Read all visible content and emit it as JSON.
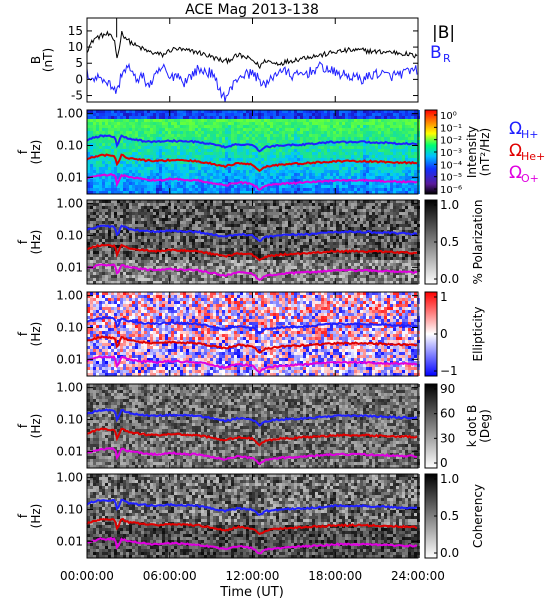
{
  "chart_data": {
    "type": "multi-panel",
    "title": "ACE Mag 2013-138",
    "xlabel": "Time (UT)",
    "x_ticks": [
      "00:00:00",
      "06:00:00",
      "12:00:00",
      "18:00:00",
      "24:00:00"
    ],
    "x_range_hours": [
      0,
      24
    ],
    "panels": [
      {
        "type": "line",
        "ylabel": "B\n(nT)",
        "ylim": [
          -7,
          19
        ],
        "y_ticks": [
          15,
          10,
          5,
          0,
          -5
        ],
        "legend": [
          {
            "label": "|B|",
            "color": "#000000"
          },
          {
            "label": "B",
            "sub": "R",
            "color": "#2020ff"
          }
        ],
        "series": [
          {
            "color": "#000000",
            "x": [
              0,
              0.5,
              1,
              1.5,
              2,
              2.2,
              2.5,
              3,
              3.5,
              4,
              4.5,
              5,
              5.5,
              6,
              6.5,
              7,
              8,
              9,
              10,
              11,
              12,
              12.5,
              13,
              13.5,
              14,
              15,
              16,
              17,
              18,
              19,
              20,
              21,
              22,
              23,
              24
            ],
            "values": [
              9,
              12.5,
              13.5,
              14,
              12,
              6,
              14.5,
              12,
              10.5,
              9.5,
              8.5,
              8,
              7.5,
              9,
              9.5,
              9,
              8.5,
              7,
              5.5,
              7.5,
              6,
              4,
              6,
              5,
              5,
              6,
              7,
              7.5,
              8.5,
              9,
              9,
              8.5,
              8.5,
              8,
              7
            ]
          },
          {
            "color": "#2020ff",
            "x": [
              0,
              0.5,
              1,
              1.5,
              2,
              2.2,
              2.5,
              3,
              3.5,
              4,
              4.5,
              5,
              5.5,
              6,
              6.5,
              7,
              8,
              9,
              10,
              11,
              12,
              12.5,
              13,
              13.5,
              14,
              15,
              16,
              17,
              18,
              19,
              20,
              21,
              22,
              23,
              24
            ],
            "values": [
              2,
              0,
              1,
              -1,
              -3,
              -4,
              2,
              4,
              0,
              1,
              -2,
              1,
              4,
              0,
              2,
              -1,
              3,
              2,
              -6,
              1,
              2,
              0,
              -2,
              1,
              3,
              1,
              2,
              4,
              2,
              1,
              0,
              2,
              1,
              2,
              3
            ]
          }
        ]
      },
      {
        "type": "heatmap",
        "ylabel": "f\n(Hz)",
        "y_ticks": [
          "1.00",
          "0.10",
          "0.01"
        ],
        "yscale": "log",
        "colorbar_label": "Intensity\n(nT²/Hz)",
        "colorbar_ticks": [
          "10⁰",
          "10⁻¹",
          "10⁻²",
          "10⁻³",
          "10⁻⁴",
          "10⁻⁵",
          "10⁻⁶"
        ],
        "legend": [
          {
            "label": "Ω",
            "sub": "H+",
            "color": "#2020ff"
          },
          {
            "label": "Ω",
            "sub": "He+",
            "color": "#e00000"
          },
          {
            "label": "Ω",
            "sub": "O+",
            "color": "#e000e0"
          }
        ]
      },
      {
        "type": "heatmap",
        "ylabel": "f\n(Hz)",
        "y_ticks": [
          "1.00",
          "0.10",
          "0.01"
        ],
        "colorbar_label": "% Polarization",
        "colorbar_ticks": [
          "1.0",
          "0.5",
          "0.0"
        ]
      },
      {
        "type": "heatmap",
        "ylabel": "f\n(Hz)",
        "y_ticks": [
          "1.00",
          "0.10",
          "0.01"
        ],
        "colorbar_label": "Ellipticity",
        "colorbar_ticks": [
          "1",
          "0",
          "−1"
        ]
      },
      {
        "type": "heatmap",
        "ylabel": "f\n(Hz)",
        "y_ticks": [
          "1.00",
          "0.10",
          "0.01"
        ],
        "colorbar_label": "k dot B\n(Deg)",
        "colorbar_ticks": [
          "90",
          "60",
          "30",
          "0"
        ]
      },
      {
        "type": "heatmap",
        "ylabel": "f\n(Hz)",
        "y_ticks": [
          "1.00",
          "0.10",
          "0.01"
        ],
        "colorbar_label": "Coherency",
        "colorbar_ticks": [
          "1.0",
          "0.5",
          "0.0"
        ]
      }
    ],
    "gyrofrequency_lines": [
      {
        "ion": "H+",
        "color": "#2020ff",
        "x": [
          0,
          1,
          2,
          2.2,
          2.5,
          3,
          4,
          5,
          6,
          8,
          10,
          11,
          12,
          12.5,
          13,
          14,
          16,
          18,
          20,
          22,
          24
        ],
        "values": [
          0.15,
          0.2,
          0.19,
          0.09,
          0.2,
          0.16,
          0.14,
          0.13,
          0.14,
          0.13,
          0.09,
          0.11,
          0.1,
          0.065,
          0.09,
          0.1,
          0.11,
          0.13,
          0.13,
          0.12,
          0.11
        ]
      },
      {
        "ion": "He+",
        "color": "#e00000",
        "x": [
          0,
          1,
          2,
          2.2,
          2.5,
          3,
          4,
          5,
          6,
          8,
          10,
          11,
          12,
          12.5,
          13,
          14,
          16,
          18,
          20,
          22,
          24
        ],
        "values": [
          0.037,
          0.05,
          0.048,
          0.022,
          0.05,
          0.04,
          0.035,
          0.032,
          0.035,
          0.032,
          0.022,
          0.028,
          0.025,
          0.016,
          0.022,
          0.025,
          0.028,
          0.032,
          0.032,
          0.03,
          0.028
        ]
      },
      {
        "ion": "O+",
        "color": "#e000e0",
        "x": [
          0,
          1,
          2,
          2.2,
          2.5,
          3,
          4,
          5,
          6,
          8,
          10,
          11,
          12,
          12.5,
          13,
          14,
          16,
          18,
          20,
          22,
          24
        ],
        "values": [
          0.009,
          0.012,
          0.012,
          0.0055,
          0.012,
          0.01,
          0.0088,
          0.008,
          0.0088,
          0.008,
          0.0055,
          0.007,
          0.0062,
          0.004,
          0.0055,
          0.0062,
          0.007,
          0.008,
          0.008,
          0.0075,
          0.007
        ]
      }
    ],
    "f_range_hz": [
      0.003,
      1.3
    ]
  }
}
